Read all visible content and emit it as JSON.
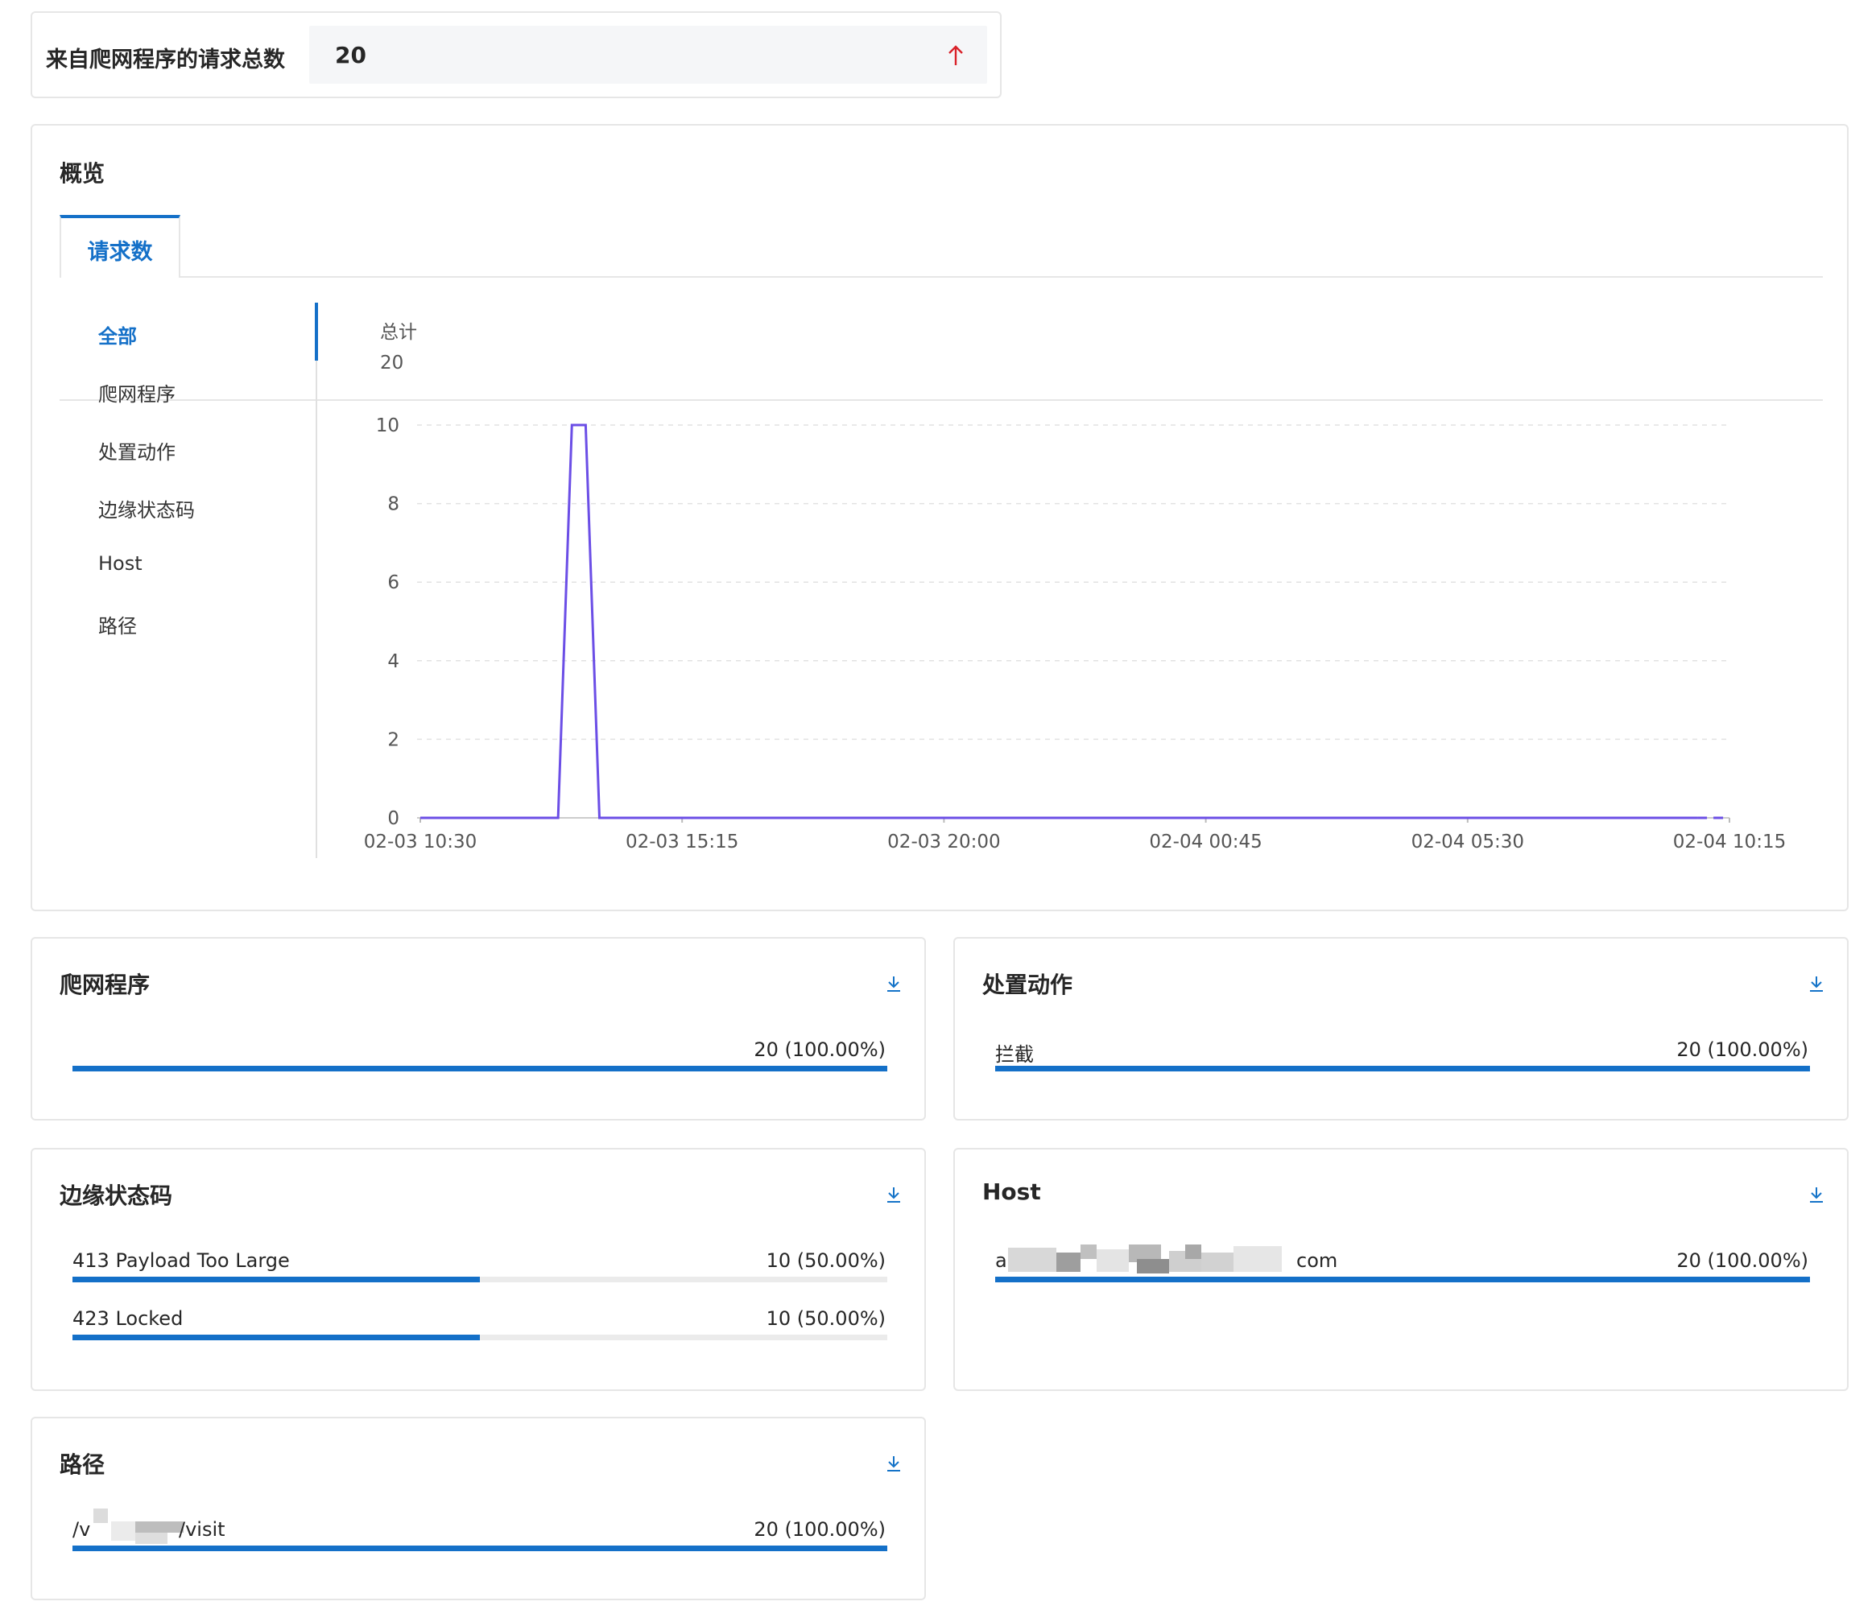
{
  "summary": {
    "label": "来自爬网程序的请求总数",
    "value": "20",
    "trend_icon": "arrow-up-icon",
    "trend_color": "#d9222a"
  },
  "overview": {
    "title": "概览",
    "tabs": [
      {
        "label": "请求数",
        "active": true
      }
    ],
    "side_items": [
      {
        "label": "全部",
        "active": true
      },
      {
        "label": "爬网程序",
        "active": false
      },
      {
        "label": "处置动作",
        "active": false
      },
      {
        "label": "边缘状态码",
        "active": false
      },
      {
        "label": "Host",
        "active": false
      },
      {
        "label": "路径",
        "active": false
      }
    ]
  },
  "chart_data": {
    "type": "line",
    "series_label": "总计",
    "total": "20",
    "x_ticks": [
      "02-03 10:30",
      "02-03 15:15",
      "02-03 20:00",
      "02-04 00:45",
      "02-04 05:30",
      "02-04 10:15"
    ],
    "y_ticks": [
      "0",
      "2",
      "4",
      "6",
      "8",
      "10"
    ],
    "ylim": [
      0,
      10
    ],
    "grid": true,
    "color": "#6b4ee6",
    "points": [
      {
        "x": "02-03 10:30",
        "y": 0
      },
      {
        "x": "02-03 13:00",
        "y": 0
      },
      {
        "x": "02-03 13:15",
        "y": 10
      },
      {
        "x": "02-03 13:30",
        "y": 10
      },
      {
        "x": "02-03 13:45",
        "y": 0
      },
      {
        "x": "02-04 09:40",
        "y": 0
      },
      {
        "x": "02-04 10:15",
        "y": 0
      }
    ]
  },
  "panels": {
    "crawler": {
      "title": "爬网程序",
      "download_icon": "download-icon",
      "rows": [
        {
          "label": "",
          "value": "20 (100.00%)",
          "ratio": 1.0
        }
      ]
    },
    "action": {
      "title": "处置动作",
      "download_icon": "download-icon",
      "rows": [
        {
          "label": "拦截",
          "value": "20 (100.00%)",
          "ratio": 1.0
        }
      ]
    },
    "status": {
      "title": "边缘状态码",
      "download_icon": "download-icon",
      "rows": [
        {
          "label": "413 Payload Too Large",
          "value": "10 (50.00%)",
          "ratio": 0.5
        },
        {
          "label": "423 Locked",
          "value": "10 (50.00%)",
          "ratio": 0.5
        }
      ]
    },
    "host": {
      "title": "Host",
      "download_icon": "download-icon",
      "rows": [
        {
          "label_start": "a",
          "label_end": "com",
          "value": "20 (100.00%)",
          "ratio": 1.0
        }
      ]
    },
    "path": {
      "title": "路径",
      "download_icon": "download-icon",
      "rows": [
        {
          "label_start": "/v",
          "label_end": "/visit",
          "value": "20 (100.00%)",
          "ratio": 1.0
        }
      ]
    }
  },
  "colors": {
    "accent": "#1470c8",
    "bar_track": "#ebebeb",
    "line": "#6b4ee6",
    "arrow": "#d9222a"
  }
}
